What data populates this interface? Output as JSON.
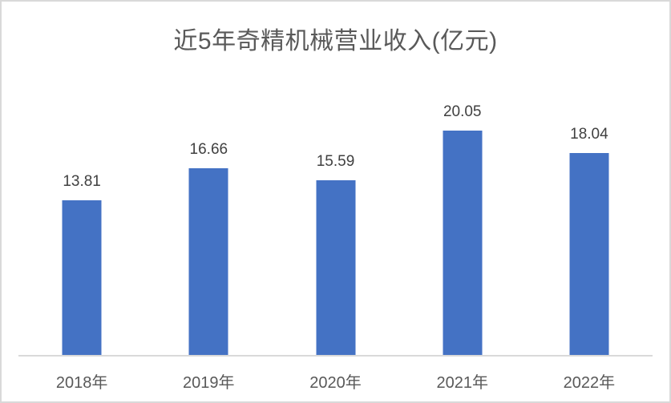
{
  "chart_title": "近5年奇精机械营业收入(亿元)",
  "chart_data": {
    "type": "bar",
    "title": "近5年奇精机械营业收入(亿元)",
    "categories": [
      "2018年",
      "2019年",
      "2020年",
      "2021年",
      "2022年"
    ],
    "values": [
      13.81,
      16.66,
      15.59,
      20.05,
      18.04
    ],
    "value_labels": [
      "13.81",
      "16.66",
      "15.59",
      "20.05",
      "18.04"
    ],
    "xlabel": "",
    "ylabel": "",
    "ylim": [
      0,
      25
    ],
    "grid": false,
    "legend_position": "none",
    "y_axis_visible": false,
    "colors": {
      "bar": "#4472C4",
      "value_label": "#404040",
      "tick_label": "#595959",
      "title": "#595959",
      "axis_line": "#D9D9D9",
      "frame_border": "#D9D9D9",
      "background": "#FFFFFF"
    }
  }
}
